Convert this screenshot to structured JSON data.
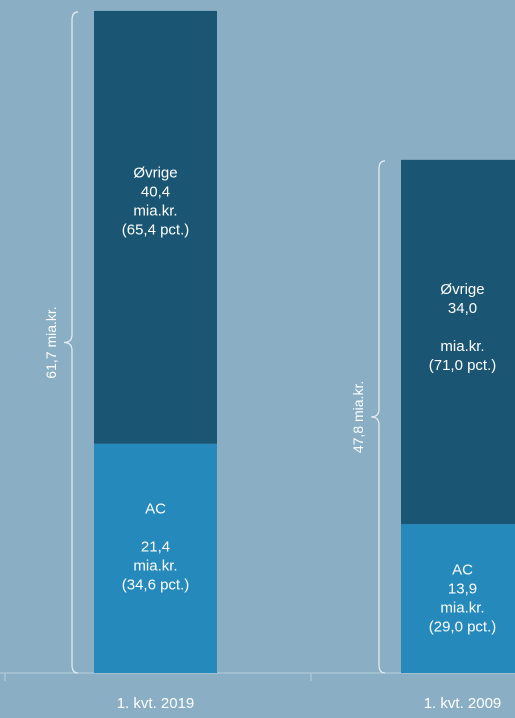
{
  "chart_data": {
    "type": "bar",
    "stacked": true,
    "categories": [
      "1. kvt. 2019",
      "1. kvt. 2009"
    ],
    "series": [
      {
        "key": "ac",
        "color": "#2589bb",
        "values": [
          21.4,
          13.9
        ],
        "labels": [
          [
            "AC",
            "",
            "21,4",
            "mia.kr.",
            "(34,6 pct.)"
          ],
          [
            "AC",
            "13,9",
            "mia.kr.",
            "(29,0 pct.)"
          ]
        ]
      },
      {
        "key": "ovrige",
        "color": "#1a5673",
        "values": [
          40.4,
          34.0
        ],
        "labels": [
          [
            "Øvrige",
            "40,4",
            "mia.kr.",
            "(65,4 pct.)"
          ],
          [
            "Øvrige",
            "34,0",
            "",
            "mia.kr.",
            "(71,0 pct.)"
          ]
        ]
      }
    ],
    "totals": [
      61.7,
      47.8
    ],
    "total_labels": [
      "61,7 mia.kr.",
      "47,8 mia.kr."
    ],
    "ylim": [
      0,
      61.7
    ],
    "grid": false,
    "legend": "none"
  }
}
